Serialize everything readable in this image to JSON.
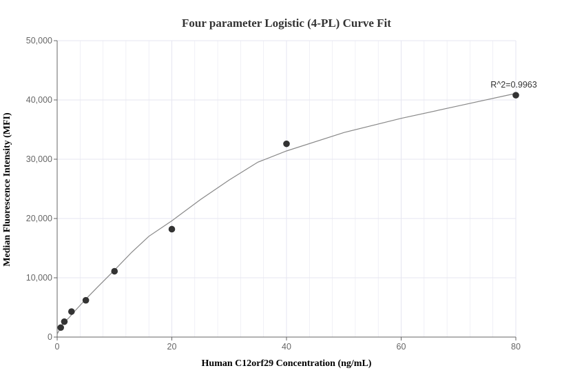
{
  "chart_data": {
    "type": "scatter",
    "title": "Four parameter Logistic (4-PL) Curve Fit",
    "xlabel": "Human C12orf29 Concentration (ng/mL)",
    "ylabel": "Median Fluorescence Intensity (MFI)",
    "xlim": [
      0,
      80
    ],
    "ylim": [
      0,
      50000
    ],
    "x_ticks": [
      0,
      20,
      40,
      60,
      80
    ],
    "y_ticks": [
      0,
      10000,
      20000,
      30000,
      40000,
      50000
    ],
    "x_tick_labels": [
      "0",
      "20",
      "40",
      "60",
      "80"
    ],
    "y_tick_labels": [
      "0",
      "10,000",
      "20,000",
      "30,000",
      "40,000",
      "50,000"
    ],
    "grid": true,
    "points": {
      "x": [
        0.625,
        1.25,
        2.5,
        5,
        10,
        20,
        40,
        80
      ],
      "y": [
        1600,
        2600,
        4300,
        6200,
        11100,
        18200,
        32600,
        40800
      ]
    },
    "fit_curve": {
      "x": [
        0,
        1,
        2,
        3,
        5,
        7,
        10,
        13,
        16,
        20,
        25,
        30,
        35,
        40,
        50,
        60,
        70,
        80
      ],
      "y": [
        500,
        2300,
        3200,
        4300,
        6400,
        8400,
        11300,
        14300,
        17000,
        19600,
        23200,
        26500,
        29500,
        31400,
        34500,
        36900,
        39000,
        41100
      ]
    },
    "annotation": {
      "text": "R^2=0.9963"
    },
    "colors": {
      "point": "#333333",
      "curve": "#888888",
      "grid": "#e6e6f0",
      "axis": "#666666"
    }
  }
}
